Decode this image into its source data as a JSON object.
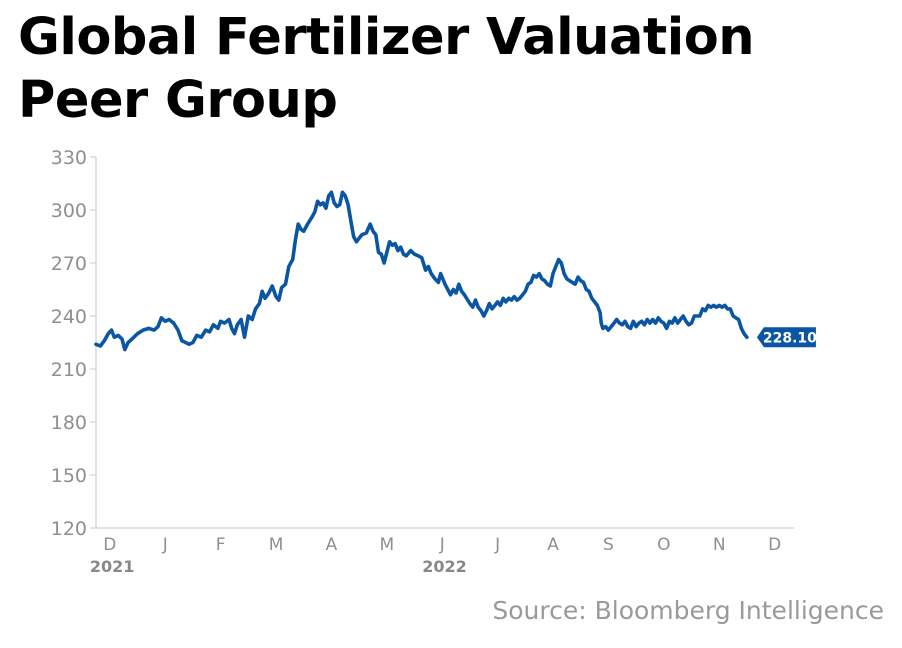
{
  "title_lines": [
    "Global Fertilizer Valuation",
    "Peer Group"
  ],
  "source": "Source: Bloomberg Intelligence",
  "colors": {
    "line": "#0b56a4",
    "axis": "#d0d0d0",
    "tick_text": "#8f8f8f",
    "year_text": "#888888",
    "label_bg": "#0b56a4",
    "label_text": "#ffffff"
  },
  "chart_data": {
    "type": "line",
    "title": "Global Fertilizer Valuation Peer Group",
    "ylim": [
      120,
      330
    ],
    "yticks": [
      120,
      150,
      180,
      210,
      240,
      270,
      300,
      330
    ],
    "xticks": [
      {
        "label": "D",
        "year": "2021",
        "pos": 0.25
      },
      {
        "label": "J",
        "pos": 1.25
      },
      {
        "label": "F",
        "pos": 2.25
      },
      {
        "label": "M",
        "pos": 3.25
      },
      {
        "label": "A",
        "pos": 4.25
      },
      {
        "label": "M",
        "pos": 5.25
      },
      {
        "label": "J",
        "year": "2022",
        "pos": 6.25
      },
      {
        "label": "J",
        "pos": 7.25
      },
      {
        "label": "A",
        "pos": 8.25
      },
      {
        "label": "S",
        "pos": 9.25
      },
      {
        "label": "O",
        "pos": 10.25
      },
      {
        "label": "N",
        "pos": 11.25
      },
      {
        "label": "D",
        "pos": 12.25
      }
    ],
    "x_range_months": [
      0,
      12.6
    ],
    "last_value_label": "228.10",
    "series": [
      {
        "points": [
          [
            0.0,
            224
          ],
          [
            0.08,
            223
          ],
          [
            0.15,
            226
          ],
          [
            0.22,
            230
          ],
          [
            0.28,
            232
          ],
          [
            0.33,
            228
          ],
          [
            0.4,
            229
          ],
          [
            0.47,
            227
          ],
          [
            0.52,
            221
          ],
          [
            0.58,
            225
          ],
          [
            0.65,
            227
          ],
          [
            0.75,
            230
          ],
          [
            0.85,
            232
          ],
          [
            0.95,
            233
          ],
          [
            1.05,
            232
          ],
          [
            1.12,
            234
          ],
          [
            1.18,
            239
          ],
          [
            1.25,
            237
          ],
          [
            1.32,
            238
          ],
          [
            1.4,
            236
          ],
          [
            1.48,
            232
          ],
          [
            1.55,
            226
          ],
          [
            1.62,
            225
          ],
          [
            1.68,
            224
          ],
          [
            1.75,
            225
          ],
          [
            1.82,
            229
          ],
          [
            1.9,
            228
          ],
          [
            1.98,
            232
          ],
          [
            2.05,
            231
          ],
          [
            2.12,
            235
          ],
          [
            2.2,
            233
          ],
          [
            2.25,
            237
          ],
          [
            2.32,
            236
          ],
          [
            2.4,
            238
          ],
          [
            2.45,
            233
          ],
          [
            2.5,
            230
          ],
          [
            2.55,
            235
          ],
          [
            2.62,
            238
          ],
          [
            2.68,
            228
          ],
          [
            2.75,
            240
          ],
          [
            2.82,
            238
          ],
          [
            2.88,
            244
          ],
          [
            2.95,
            247
          ],
          [
            3.0,
            254
          ],
          [
            3.05,
            250
          ],
          [
            3.12,
            253
          ],
          [
            3.18,
            257
          ],
          [
            3.25,
            251
          ],
          [
            3.3,
            249
          ],
          [
            3.35,
            256
          ],
          [
            3.42,
            258
          ],
          [
            3.48,
            268
          ],
          [
            3.55,
            272
          ],
          [
            3.6,
            283
          ],
          [
            3.65,
            292
          ],
          [
            3.7,
            289
          ],
          [
            3.75,
            288
          ],
          [
            3.82,
            292
          ],
          [
            3.9,
            296
          ],
          [
            3.95,
            299
          ],
          [
            4.0,
            305
          ],
          [
            4.05,
            303
          ],
          [
            4.1,
            304
          ],
          [
            4.15,
            301
          ],
          [
            4.2,
            308
          ],
          [
            4.25,
            310
          ],
          [
            4.3,
            304
          ],
          [
            4.35,
            302
          ],
          [
            4.4,
            303
          ],
          [
            4.45,
            310
          ],
          [
            4.5,
            308
          ],
          [
            4.55,
            303
          ],
          [
            4.6,
            294
          ],
          [
            4.65,
            285
          ],
          [
            4.7,
            282
          ],
          [
            4.75,
            284
          ],
          [
            4.8,
            286
          ],
          [
            4.88,
            287
          ],
          [
            4.95,
            292
          ],
          [
            5.0,
            288
          ],
          [
            5.05,
            286
          ],
          [
            5.1,
            276
          ],
          [
            5.15,
            275
          ],
          [
            5.2,
            270
          ],
          [
            5.25,
            276
          ],
          [
            5.3,
            282
          ],
          [
            5.35,
            280
          ],
          [
            5.4,
            281
          ],
          [
            5.45,
            277
          ],
          [
            5.5,
            279
          ],
          [
            5.55,
            275
          ],
          [
            5.6,
            274
          ],
          [
            5.68,
            277
          ],
          [
            5.75,
            275
          ],
          [
            5.82,
            274
          ],
          [
            5.88,
            273
          ],
          [
            5.95,
            266
          ],
          [
            6.0,
            268
          ],
          [
            6.05,
            264
          ],
          [
            6.12,
            261
          ],
          [
            6.18,
            259
          ],
          [
            6.22,
            264
          ],
          [
            6.3,
            258
          ],
          [
            6.35,
            255
          ],
          [
            6.4,
            252
          ],
          [
            6.45,
            255
          ],
          [
            6.5,
            253
          ],
          [
            6.55,
            258
          ],
          [
            6.6,
            254
          ],
          [
            6.65,
            252
          ],
          [
            6.75,
            247
          ],
          [
            6.8,
            245
          ],
          [
            6.85,
            249
          ],
          [
            6.9,
            245
          ],
          [
            6.95,
            243
          ],
          [
            7.0,
            240
          ],
          [
            7.05,
            243
          ],
          [
            7.1,
            247
          ],
          [
            7.15,
            244
          ],
          [
            7.2,
            246
          ],
          [
            7.25,
            248
          ],
          [
            7.3,
            246
          ],
          [
            7.35,
            250
          ],
          [
            7.4,
            248
          ],
          [
            7.45,
            250
          ],
          [
            7.5,
            249
          ],
          [
            7.55,
            251
          ],
          [
            7.6,
            249
          ],
          [
            7.65,
            250
          ],
          [
            7.7,
            252
          ],
          [
            7.75,
            254
          ],
          [
            7.8,
            258
          ],
          [
            7.85,
            259
          ],
          [
            7.9,
            263
          ],
          [
            7.95,
            262
          ],
          [
            8.0,
            264
          ],
          [
            8.05,
            261
          ],
          [
            8.1,
            260
          ],
          [
            8.15,
            258
          ],
          [
            8.2,
            257
          ],
          [
            8.25,
            264
          ],
          [
            8.3,
            268
          ],
          [
            8.35,
            272
          ],
          [
            8.4,
            270
          ],
          [
            8.45,
            264
          ],
          [
            8.5,
            261
          ],
          [
            8.55,
            260
          ],
          [
            8.65,
            258
          ],
          [
            8.7,
            262
          ],
          [
            8.75,
            260
          ],
          [
            8.8,
            259
          ],
          [
            8.85,
            255
          ],
          [
            8.9,
            254
          ],
          [
            8.95,
            250
          ],
          [
            9.0,
            248
          ],
          [
            9.05,
            246
          ],
          [
            9.1,
            242
          ],
          [
            9.12,
            236
          ],
          [
            9.15,
            233
          ],
          [
            9.2,
            234
          ],
          [
            9.25,
            232
          ],
          [
            9.3,
            234
          ],
          [
            9.35,
            236
          ],
          [
            9.4,
            238
          ],
          [
            9.45,
            236
          ],
          [
            9.5,
            235
          ],
          [
            9.55,
            237
          ],
          [
            9.6,
            234
          ],
          [
            9.65,
            233
          ],
          [
            9.7,
            237
          ],
          [
            9.75,
            234
          ],
          [
            9.8,
            236
          ],
          [
            9.85,
            237
          ],
          [
            9.9,
            235
          ],
          [
            9.95,
            238
          ],
          [
            10.0,
            236
          ],
          [
            10.05,
            238
          ],
          [
            10.1,
            236
          ],
          [
            10.15,
            239
          ],
          [
            10.2,
            237
          ],
          [
            10.25,
            236
          ],
          [
            10.3,
            233
          ],
          [
            10.35,
            237
          ],
          [
            10.4,
            236
          ],
          [
            10.45,
            239
          ],
          [
            10.5,
            236
          ],
          [
            10.55,
            238
          ],
          [
            10.6,
            240
          ],
          [
            10.65,
            237
          ],
          [
            10.7,
            235
          ],
          [
            10.75,
            236
          ],
          [
            10.8,
            240
          ],
          [
            10.9,
            240
          ],
          [
            10.95,
            244
          ],
          [
            11.0,
            243
          ],
          [
            11.05,
            246
          ],
          [
            11.1,
            245
          ],
          [
            11.15,
            246
          ],
          [
            11.2,
            245
          ],
          [
            11.25,
            246
          ],
          [
            11.3,
            245
          ],
          [
            11.35,
            246
          ],
          [
            11.4,
            244
          ],
          [
            11.45,
            244
          ],
          [
            11.5,
            240
          ],
          [
            11.55,
            239
          ],
          [
            11.6,
            238
          ],
          [
            11.65,
            233
          ],
          [
            11.7,
            230
          ],
          [
            11.75,
            228
          ]
        ]
      }
    ]
  }
}
